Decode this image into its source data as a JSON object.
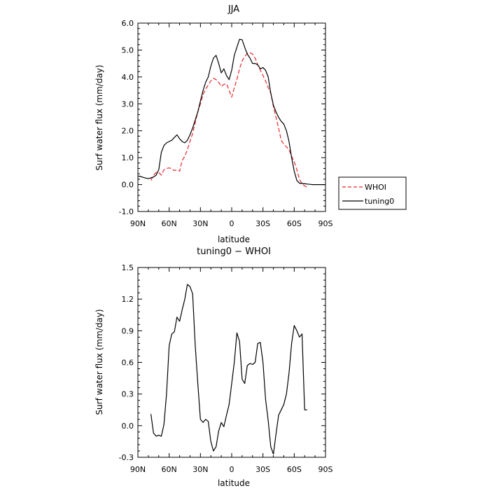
{
  "chart_data": [
    {
      "type": "line",
      "title": "JJA",
      "xlabel": "latitude",
      "ylabel": "Surf water flux (mm/day)",
      "xlim": [
        90,
        -90
      ],
      "ylim": [
        -1.0,
        6.0
      ],
      "xticks": [
        90,
        60,
        30,
        0,
        -30,
        -60,
        -90
      ],
      "xtick_labels": [
        "90N",
        "60N",
        "30N",
        "0",
        "30S",
        "60S",
        "90S"
      ],
      "yticks": [
        -1,
        0,
        1,
        2,
        3,
        4,
        5,
        6
      ],
      "ytick_labels": [
        "-1.0",
        "0.0",
        "1.0",
        "2.0",
        "3.0",
        "4.0",
        "5.0",
        "6.0"
      ],
      "legend_position": "right",
      "series": [
        {
          "name": "WHOI",
          "color": "#e8262b",
          "style": "dashed",
          "x": [
            77.5,
            75,
            72.5,
            70,
            67.5,
            65,
            62.5,
            60,
            57.5,
            55,
            52.5,
            50,
            47.5,
            45,
            42.5,
            40,
            37.5,
            35,
            32.5,
            30,
            27.5,
            25,
            22.5,
            20,
            17.5,
            15,
            12.5,
            10,
            7.5,
            5,
            2.5,
            0,
            -2.5,
            -5,
            -7.5,
            -10,
            -12.5,
            -15,
            -17.5,
            -20,
            -22.5,
            -25,
            -27.5,
            -30,
            -32.5,
            -35,
            -37.5,
            -40,
            -42.5,
            -45,
            -47.5,
            -50,
            -52.5,
            -55,
            -57.5,
            -60,
            -62.5,
            -65,
            -67.5,
            -70,
            -72.5
          ],
          "y": [
            0.15,
            0.35,
            0.45,
            0.45,
            0.35,
            0.55,
            0.6,
            0.62,
            0.58,
            0.52,
            0.55,
            0.5,
            0.9,
            1.05,
            1.3,
            1.6,
            1.9,
            2.3,
            2.7,
            3.0,
            3.35,
            3.55,
            3.7,
            3.85,
            3.95,
            3.9,
            3.8,
            3.65,
            3.72,
            3.75,
            3.5,
            3.25,
            3.6,
            3.9,
            4.3,
            4.6,
            4.75,
            4.88,
            4.9,
            4.85,
            4.7,
            4.45,
            4.25,
            4.05,
            3.85,
            3.6,
            3.4,
            2.9,
            2.5,
            2.1,
            1.65,
            1.5,
            1.4,
            1.3,
            1.05,
            0.85,
            0.55,
            0.2,
            0.02,
            -0.05,
            -0.1
          ]
        },
        {
          "name": "tuning0",
          "color": "#000000",
          "style": "solid",
          "x": [
            90,
            87.5,
            85,
            82.5,
            80,
            77.5,
            75,
            72.5,
            70,
            67.5,
            65,
            62.5,
            60,
            57.5,
            55,
            52.5,
            50,
            47.5,
            45,
            42.5,
            40,
            37.5,
            35,
            32.5,
            30,
            27.5,
            25,
            22.5,
            20,
            17.5,
            15,
            12.5,
            10,
            7.5,
            5,
            2.5,
            0,
            -2.5,
            -5,
            -7.5,
            -10,
            -12.5,
            -15,
            -17.5,
            -20,
            -22.5,
            -25,
            -27.5,
            -30,
            -32.5,
            -35,
            -37.5,
            -40,
            -42.5,
            -45,
            -47.5,
            -50,
            -52.5,
            -55,
            -57.5,
            -60,
            -62.5,
            -65,
            -67.5,
            -70,
            -72.5,
            -75,
            -77.5,
            -80,
            -82.5,
            -85,
            -87.5,
            -90
          ],
          "y": [
            0.32,
            0.3,
            0.27,
            0.24,
            0.22,
            0.25,
            0.28,
            0.35,
            0.55,
            1.2,
            1.45,
            1.55,
            1.6,
            1.65,
            1.75,
            1.85,
            1.7,
            1.6,
            1.55,
            1.65,
            1.85,
            2.1,
            2.4,
            2.7,
            3.1,
            3.5,
            3.8,
            4.0,
            4.4,
            4.7,
            4.8,
            4.5,
            4.15,
            4.3,
            4.05,
            3.9,
            4.25,
            4.8,
            5.1,
            5.4,
            5.38,
            5.1,
            4.85,
            4.7,
            4.5,
            4.5,
            4.45,
            4.3,
            4.35,
            4.25,
            4.0,
            3.4,
            2.95,
            2.7,
            2.5,
            2.35,
            2.25,
            2.0,
            1.6,
            1.0,
            0.5,
            0.15,
            0.05,
            0.04,
            0.03,
            0.02,
            0.01,
            0.0,
            0.0,
            0.0,
            0.0,
            0.0,
            0.0
          ]
        }
      ]
    },
    {
      "type": "line",
      "title": "tuning0 − WHOI",
      "xlabel": "latitude",
      "ylabel": "Surf water flux (mm/day)",
      "xlim": [
        90,
        -90
      ],
      "ylim": [
        -0.3,
        1.5
      ],
      "xticks": [
        90,
        60,
        30,
        0,
        -30,
        -60,
        -90
      ],
      "xtick_labels": [
        "90N",
        "60N",
        "30N",
        "0",
        "30S",
        "60S",
        "90S"
      ],
      "yticks": [
        -0.3,
        0.0,
        0.3,
        0.6,
        0.9,
        1.2,
        1.5
      ],
      "ytick_labels": [
        "-0.3",
        "0.0",
        "0.3",
        "0.6",
        "0.9",
        "1.2",
        "1.5"
      ],
      "series": [
        {
          "color": "#000000",
          "style": "solid",
          "x": [
            77.5,
            75,
            72.5,
            70,
            67.5,
            65,
            62.5,
            60,
            57.5,
            55,
            52.5,
            50,
            47.5,
            45,
            42.5,
            40,
            37.5,
            35,
            32.5,
            30,
            27.5,
            25,
            22.5,
            20,
            17.5,
            15,
            12.5,
            10,
            7.5,
            5,
            2.5,
            0,
            -2.5,
            -5,
            -7.5,
            -10,
            -12.5,
            -15,
            -17.5,
            -20,
            -22.5,
            -25,
            -27.5,
            -30,
            -32.5,
            -35,
            -37.5,
            -40,
            -42.5,
            -45,
            -47.5,
            -50,
            -52.5,
            -55,
            -57.5,
            -60,
            -62.5,
            -65,
            -67.5,
            -70,
            -72.5
          ],
          "y": [
            0.11,
            -0.07,
            -0.1,
            -0.09,
            -0.1,
            0.01,
            0.3,
            0.76,
            0.87,
            0.89,
            1.03,
            0.99,
            1.1,
            1.2,
            1.34,
            1.32,
            1.25,
            0.76,
            0.4,
            0.06,
            0.03,
            0.06,
            0.04,
            -0.15,
            -0.24,
            -0.2,
            -0.05,
            0.03,
            -0.01,
            0.1,
            0.2,
            0.4,
            0.6,
            0.88,
            0.8,
            0.44,
            0.4,
            0.57,
            0.59,
            0.58,
            0.6,
            0.78,
            0.79,
            0.6,
            0.25,
            0.05,
            -0.2,
            -0.27,
            -0.08,
            0.1,
            0.15,
            0.2,
            0.3,
            0.5,
            0.78,
            0.95,
            0.9,
            0.84,
            0.87,
            0.15,
            0.15
          ]
        }
      ]
    }
  ],
  "legend": [
    {
      "label": "WHOI",
      "series": "WHOI"
    },
    {
      "label": "tuning0",
      "series": "tuning0"
    }
  ]
}
